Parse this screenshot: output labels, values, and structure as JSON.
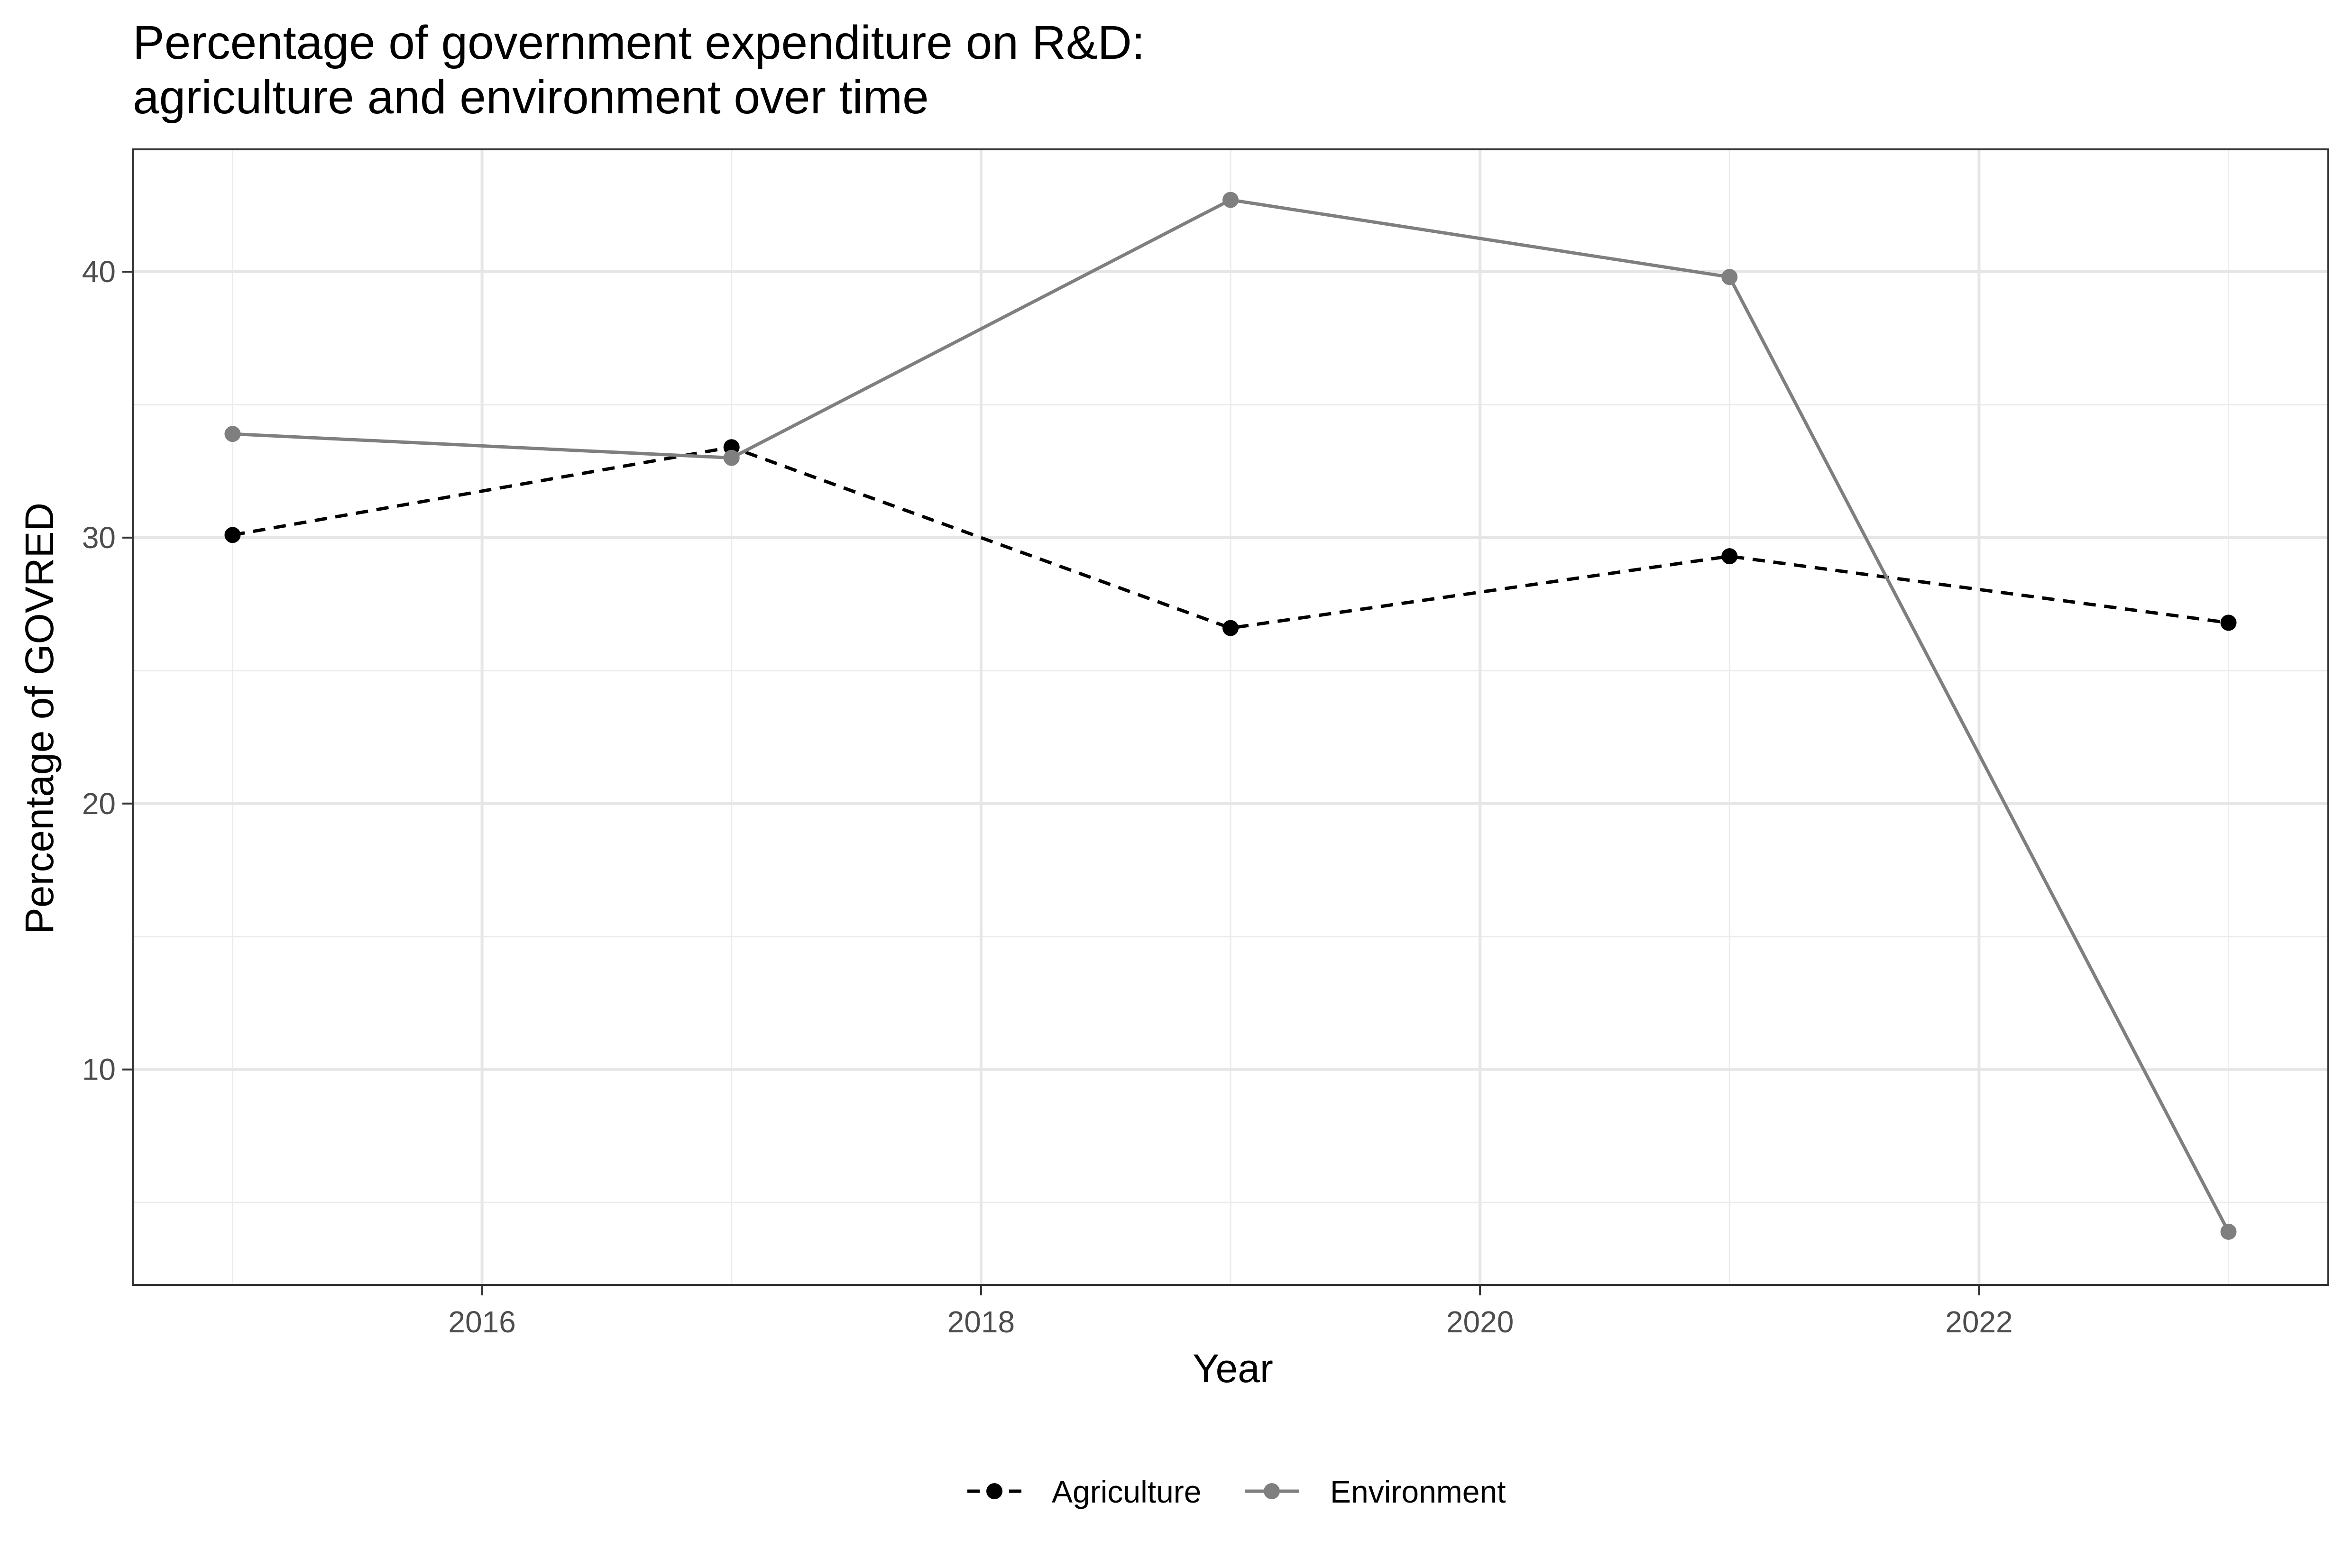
{
  "chart_data": {
    "type": "line",
    "title": [
      "Percentage of government expenditure on R&D:",
      "agriculture and environment over time"
    ],
    "xlabel": "Year",
    "ylabel": "Percentage of GOVRED",
    "x": [
      2015,
      2017,
      2019,
      2021,
      2023
    ],
    "xticks": [
      "2016",
      "2018",
      "2020",
      "2022"
    ],
    "xlim": [
      2014.6,
      2023.4
    ],
    "yticks": [
      "10",
      "20",
      "30",
      "40"
    ],
    "ylim": [
      1.9,
      44.6
    ],
    "grid": true,
    "legend_position": "bottom",
    "series": [
      {
        "name": "Agriculture",
        "values": [
          30.1,
          33.4,
          26.6,
          29.3,
          26.8
        ],
        "color": "#000000",
        "line_style": "dashed"
      },
      {
        "name": "Environment",
        "values": [
          33.9,
          33.0,
          42.7,
          39.8,
          3.9
        ],
        "color": "#7f7f7f",
        "line_style": "solid"
      }
    ]
  }
}
